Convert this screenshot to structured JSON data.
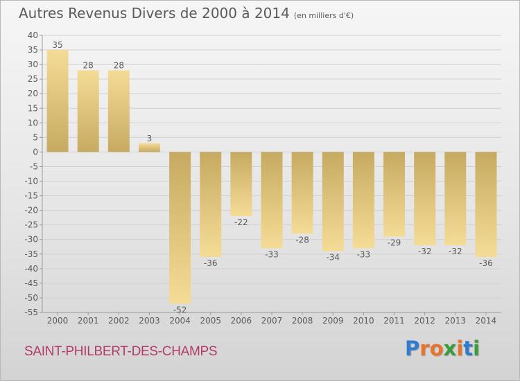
{
  "header": {
    "title": "Autres Revenus Divers de 2000 à 2014",
    "subtitle": "(en milliers d'€)"
  },
  "footer": {
    "commune": "SAINT-PHILBERT-DES-CHAMPS",
    "brand_letters": [
      "P",
      "r",
      "o",
      "x",
      "i",
      "t",
      "i"
    ],
    "brand_colors": [
      "#2e7bcf",
      "#e8742a",
      "#e8742a",
      "#3a9d3a",
      "#e8742a",
      "#2e7bcf",
      "#3a9d3a"
    ]
  },
  "colors": {
    "bar_light": "#f5dc96",
    "bar_dark": "#c6aa62",
    "text": "#5a5a5a",
    "grid": "#d0d0d0",
    "axis": "#9a9a9a"
  },
  "chart_data": {
    "type": "bar",
    "categories": [
      "2000",
      "2001",
      "2002",
      "2003",
      "2004",
      "2005",
      "2006",
      "2007",
      "2008",
      "2009",
      "2010",
      "2011",
      "2012",
      "2013",
      "2014"
    ],
    "values": [
      35,
      28,
      28,
      3,
      -52,
      -36,
      -22,
      -33,
      -28,
      -34,
      -33,
      -29,
      -32,
      -32,
      -36
    ],
    "data_labels": [
      "35",
      "28",
      "28",
      "3",
      "-52",
      "-36",
      "-22",
      "-33",
      "-28",
      "-34",
      "-33",
      "-29",
      "-32",
      "-32",
      "-36"
    ],
    "yticks": [
      40,
      35,
      30,
      25,
      20,
      15,
      10,
      5,
      0,
      -5,
      -10,
      -15,
      -20,
      -25,
      -30,
      -35,
      -40,
      -45,
      -50,
      -55
    ],
    "ylim": [
      -55,
      40
    ],
    "grid": true,
    "title": "Autres Revenus Divers de 2000 à 2014",
    "xlabel": "",
    "ylabel": ""
  }
}
